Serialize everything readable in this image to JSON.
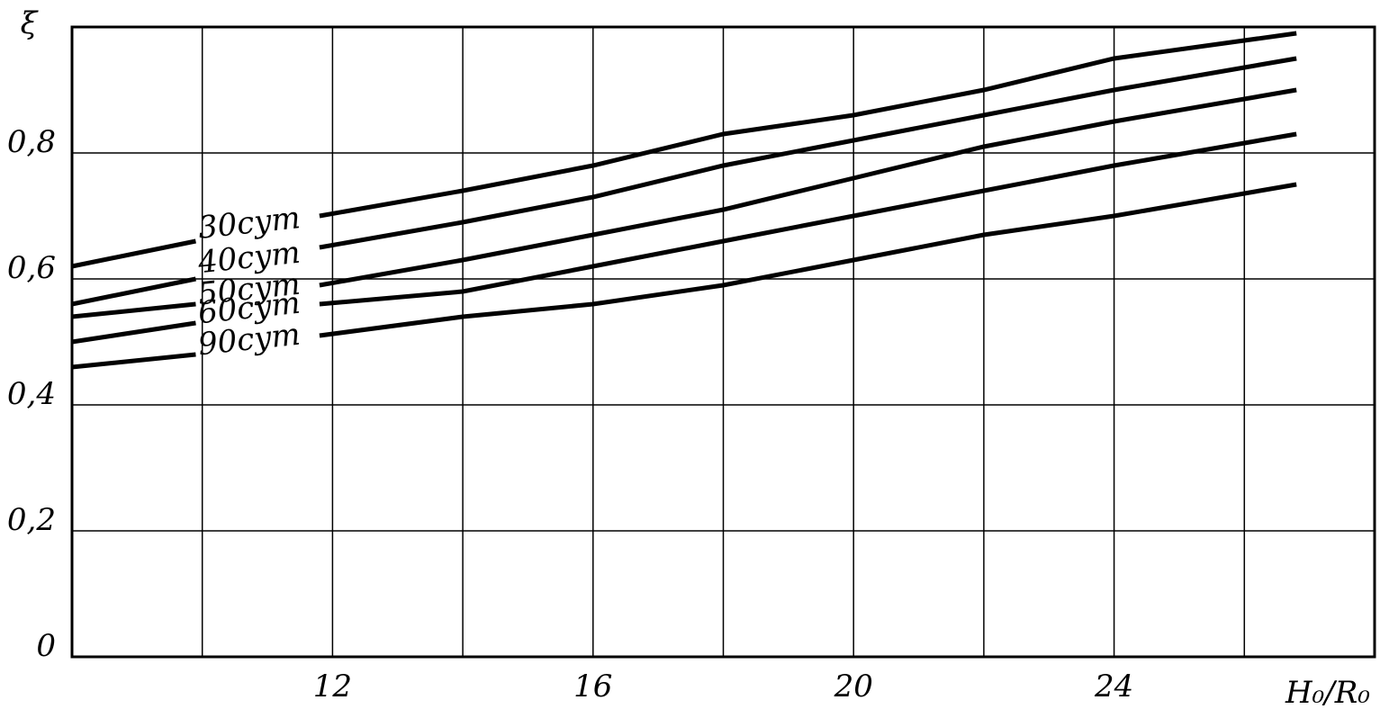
{
  "chart_data": {
    "type": "line",
    "y_label": "ξ",
    "x_label": "H₀/R₀",
    "x": [
      8,
      9.9,
      11,
      11.8,
      14,
      16,
      18,
      20,
      22,
      24,
      26.8
    ],
    "series": [
      {
        "name": "30cym",
        "color": "#000000",
        "values": [
          0.62,
          0.66,
          null,
          0.7,
          0.74,
          0.78,
          0.83,
          0.86,
          0.9,
          0.95,
          0.99
        ]
      },
      {
        "name": "40cym",
        "color": "#000000",
        "values": [
          0.56,
          0.6,
          null,
          0.65,
          0.69,
          0.73,
          0.78,
          0.82,
          0.86,
          0.9,
          0.95
        ]
      },
      {
        "name": "50cym",
        "color": "#000000",
        "values": [
          0.54,
          0.56,
          null,
          0.59,
          0.63,
          0.67,
          0.71,
          0.76,
          0.81,
          0.85,
          0.9
        ]
      },
      {
        "name": "60cym",
        "color": "#000000",
        "values": [
          0.5,
          0.53,
          null,
          0.56,
          0.58,
          0.62,
          0.66,
          0.7,
          0.74,
          0.78,
          0.83
        ]
      },
      {
        "name": "90cym",
        "color": "#000000",
        "values": [
          0.46,
          0.48,
          null,
          0.51,
          0.54,
          0.56,
          0.59,
          0.63,
          0.67,
          0.7,
          0.75
        ]
      }
    ],
    "xlim": [
      8,
      28
    ],
    "xticks": [
      12,
      16,
      20,
      24
    ],
    "xgrid": [
      10,
      14,
      18,
      22,
      26
    ],
    "ylim": [
      0,
      1
    ],
    "yticks": [
      0,
      {
        "value": 0.2,
        "label": "0,2"
      },
      {
        "value": 0.4,
        "label": "0,4"
      },
      {
        "value": 0.6,
        "label": "0,6"
      },
      {
        "value": 0.8,
        "label": "0,8"
      }
    ],
    "grid": true
  }
}
